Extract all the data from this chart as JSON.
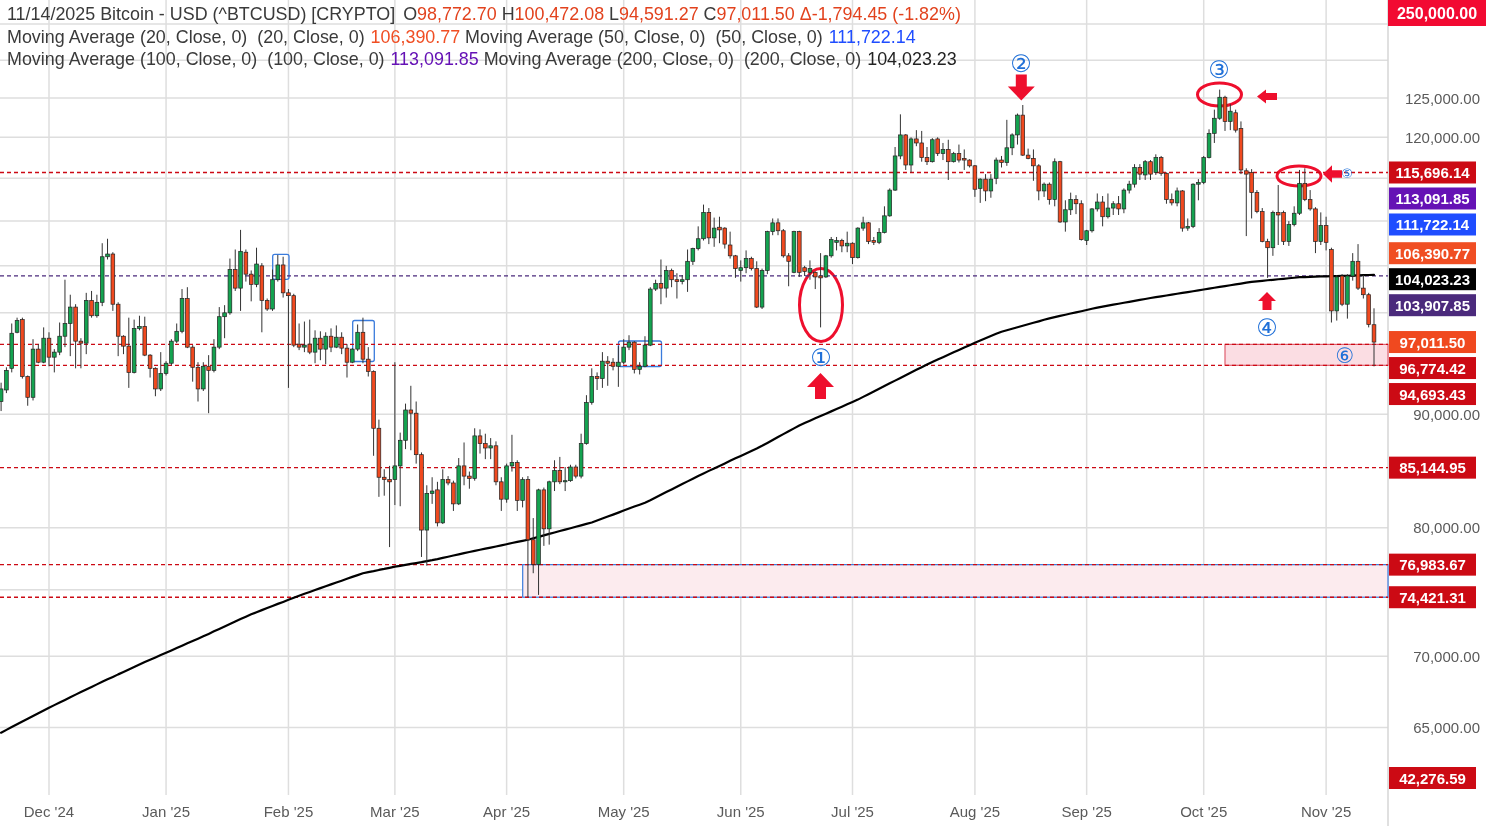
{
  "chart_data": {
    "type": "candlestick",
    "title": "11/14/2025 Bitcoin - USD (^BTCUSD) [CRYPTO]",
    "subtitle": "O98,772.70 H100,472.08 L94,591.27 C97,011.50 Δ-1,794.45 (-1.82%)",
    "categories": [
      null,
      null,
      null,
      null,
      null,
      null,
      null,
      null,
      null,
      "Dec '24",
      null,
      null,
      null,
      null,
      null,
      null,
      null,
      null,
      null,
      null,
      null,
      null,
      null,
      null,
      null,
      null,
      null,
      null,
      null,
      null,
      null,
      "Jan '25",
      null,
      null,
      null,
      null,
      null,
      null,
      null,
      null,
      null,
      null,
      null,
      null,
      null,
      null,
      null,
      null,
      null,
      null,
      null,
      null,
      null,
      null,
      "Feb '25",
      null,
      null,
      null,
      null,
      null,
      null,
      null,
      null,
      null,
      null,
      null,
      null,
      null,
      null,
      null,
      null,
      null,
      null,
      null,
      "Mar '25",
      null,
      null,
      null,
      null,
      null,
      null,
      null,
      null,
      null,
      null,
      null,
      null,
      null,
      null,
      null,
      null,
      null,
      null,
      null,
      null,
      "Apr '25",
      null,
      null,
      null,
      null,
      null,
      null,
      null,
      null,
      null,
      null,
      null,
      null,
      null,
      null,
      null,
      null,
      null,
      null,
      null,
      null,
      null,
      "May '25",
      null,
      null,
      null,
      null,
      null,
      null,
      null,
      null,
      null,
      null,
      null,
      null,
      null,
      null,
      null,
      null,
      null,
      null,
      null,
      null,
      null,
      "Jun '25",
      null,
      null,
      null,
      null,
      null,
      null,
      null,
      null,
      null,
      null,
      null,
      null,
      null,
      null,
      null,
      null,
      null,
      null,
      null,
      null,
      "Jul '25",
      null,
      null,
      null,
      null,
      null,
      null,
      null,
      null,
      null,
      null,
      null,
      null,
      null,
      null,
      null,
      null,
      null,
      null,
      null,
      null,
      null,
      null,
      "Aug '25",
      null,
      null,
      null,
      null,
      null,
      null,
      null,
      null,
      null,
      null,
      null,
      null,
      null,
      null,
      null,
      null,
      null,
      null,
      null,
      null,
      "Sep '25",
      null,
      null,
      null,
      null,
      null,
      null,
      null,
      null,
      null,
      null,
      null,
      null,
      null,
      null,
      null,
      null,
      null,
      null,
      null,
      null,
      null,
      "Oct '25",
      null,
      null,
      null,
      null,
      null,
      null,
      null,
      null,
      null,
      null,
      null,
      null,
      null,
      null,
      null,
      null,
      null,
      null,
      null,
      null,
      null,
      null,
      "Nov '25",
      null,
      null,
      null,
      null,
      null,
      null,
      null,
      null,
      null
    ],
    "ohlc": [
      [
        91200,
        93000,
        90300,
        92400
      ],
      [
        92300,
        94500,
        92000,
        94200
      ],
      [
        94400,
        98900,
        94000,
        97900
      ],
      [
        98000,
        99500,
        97900,
        99200
      ],
      [
        99300,
        99500,
        93400,
        93600
      ],
      [
        93600,
        93700,
        90800,
        91600
      ],
      [
        91600,
        97300,
        91300,
        96300
      ],
      [
        96300,
        96800,
        94900,
        95000
      ],
      [
        95000,
        98500,
        94900,
        97400
      ],
      [
        97400,
        98000,
        94600,
        95500
      ],
      [
        95500,
        96300,
        94000,
        96000
      ],
      [
        96000,
        99000,
        95700,
        97600
      ],
      [
        97600,
        103500,
        96500,
        98900
      ],
      [
        98900,
        101900,
        95600,
        100600
      ],
      [
        100600,
        100900,
        94400,
        97100
      ],
      [
        97100,
        97400,
        94400,
        96900
      ],
      [
        96900,
        102100,
        95800,
        101300
      ],
      [
        101300,
        102300,
        99500,
        99700
      ],
      [
        99700,
        101900,
        99500,
        101100
      ],
      [
        101100,
        107500,
        100700,
        106000
      ],
      [
        106000,
        108000,
        105700,
        106300
      ],
      [
        106300,
        106500,
        100200,
        100900
      ],
      [
        100900,
        101100,
        95600,
        97600
      ],
      [
        97600,
        97700,
        95800,
        96600
      ],
      [
        96600,
        99500,
        92500,
        94000
      ],
      [
        94000,
        99300,
        93900,
        98400
      ],
      [
        98400,
        99700,
        98200,
        98600
      ],
      [
        98600,
        99600,
        95600,
        95700
      ],
      [
        95700,
        95800,
        93500,
        94400
      ],
      [
        94400,
        94500,
        91700,
        92400
      ],
      [
        92400,
        96000,
        92200,
        93900
      ],
      [
        93900,
        95100,
        93700,
        94900
      ],
      [
        94900,
        97300,
        94700,
        97100
      ],
      [
        97100,
        98900,
        96900,
        98100
      ],
      [
        98100,
        102500,
        97900,
        101500
      ],
      [
        101500,
        102700,
        96400,
        96500
      ],
      [
        96500,
        96700,
        93100,
        94500
      ],
      [
        94500,
        95000,
        91200,
        92400
      ],
      [
        92400,
        95000,
        92200,
        94600
      ],
      [
        94600,
        95700,
        90100,
        94200
      ],
      [
        94200,
        97300,
        94000,
        96500
      ],
      [
        96500,
        100600,
        96300,
        99600
      ],
      [
        99600,
        100800,
        97400,
        100000
      ],
      [
        100000,
        105800,
        99800,
        104600
      ],
      [
        104600,
        106800,
        102300,
        102600
      ],
      [
        102600,
        109000,
        100200,
        106600
      ],
      [
        106500,
        106800,
        103300,
        104100
      ],
      [
        104100,
        104500,
        101200,
        103000
      ],
      [
        103000,
        107000,
        102700,
        105200
      ],
      [
        105000,
        105300,
        98000,
        101300
      ],
      [
        101300,
        101500,
        100200,
        100400
      ],
      [
        100400,
        104600,
        100200,
        103500
      ],
      [
        103500,
        106200,
        103300,
        105100
      ],
      [
        105100,
        106000,
        101600,
        102100
      ],
      [
        102100,
        102500,
        92500,
        101800
      ],
      [
        101800,
        102000,
        96500,
        96700
      ],
      [
        96800,
        98900,
        96200,
        96500
      ],
      [
        96500,
        99100,
        96000,
        96700
      ],
      [
        96800,
        99300,
        95800,
        96000
      ],
      [
        96000,
        98200,
        94900,
        97400
      ],
      [
        97400,
        98100,
        95200,
        96300
      ],
      [
        96300,
        98000,
        94800,
        97600
      ],
      [
        97600,
        98400,
        96000,
        96500
      ],
      [
        96500,
        98700,
        96400,
        97500
      ],
      [
        97500,
        98000,
        95800,
        96400
      ],
      [
        96400,
        96800,
        93500,
        95000
      ],
      [
        95000,
        96400,
        94900,
        96300
      ],
      [
        96300,
        98800,
        96100,
        98000
      ],
      [
        98000,
        99500,
        94900,
        95300
      ],
      [
        95300,
        96500,
        93600,
        94100
      ],
      [
        94100,
        94200,
        86200,
        88700
      ],
      [
        88700,
        89500,
        82600,
        84300
      ],
      [
        84300,
        85000,
        82700,
        84100
      ],
      [
        84100,
        85300,
        78400,
        83900
      ],
      [
        84100,
        95000,
        81900,
        85300
      ],
      [
        85300,
        88300,
        81800,
        87600
      ],
      [
        87600,
        91000,
        86800,
        90400
      ],
      [
        90400,
        92700,
        86700,
        90100
      ],
      [
        90100,
        91200,
        85500,
        86300
      ],
      [
        86300,
        86500,
        77600,
        79800
      ],
      [
        79800,
        83600,
        76900,
        82900
      ],
      [
        82900,
        84300,
        82000,
        83100
      ],
      [
        83200,
        83900,
        80100,
        80400
      ],
      [
        80400,
        85000,
        80300,
        84100
      ],
      [
        84100,
        84400,
        83600,
        83800
      ],
      [
        83800,
        84000,
        81400,
        82000
      ],
      [
        82000,
        86000,
        81900,
        85300
      ],
      [
        85300,
        87400,
        83600,
        84400
      ],
      [
        84400,
        84800,
        83300,
        84200
      ],
      [
        84200,
        88700,
        84000,
        88000
      ],
      [
        88000,
        88600,
        86400,
        87300
      ],
      [
        87300,
        88200,
        85900,
        86900
      ],
      [
        86900,
        87800,
        85900,
        87100
      ],
      [
        87100,
        87500,
        83600,
        83900
      ],
      [
        83900,
        84300,
        81400,
        82400
      ],
      [
        82400,
        85500,
        82100,
        85300
      ],
      [
        85300,
        88100,
        84800,
        85600
      ],
      [
        85600,
        85800,
        81400,
        82300
      ],
      [
        82300,
        84300,
        81700,
        84100
      ],
      [
        84100,
        84400,
        74420,
        79000
      ],
      [
        79000,
        80800,
        76300,
        77000
      ],
      [
        77000,
        83300,
        74600,
        83200
      ],
      [
        83200,
        83400,
        78500,
        79900
      ],
      [
        79900,
        84000,
        78600,
        83900
      ],
      [
        83900,
        85800,
        83100,
        84900
      ],
      [
        84900,
        86100,
        83700,
        83900
      ],
      [
        83900,
        85200,
        83100,
        84000
      ],
      [
        84000,
        85400,
        83900,
        85200
      ],
      [
        85200,
        85400,
        84200,
        84400
      ],
      [
        84400,
        88200,
        84200,
        87300
      ],
      [
        87300,
        91800,
        87200,
        91100
      ],
      [
        91100,
        94400,
        90900,
        93600
      ],
      [
        93600,
        94000,
        92300,
        93400
      ],
      [
        93400,
        96000,
        92500,
        95100
      ],
      [
        95100,
        95600,
        92700,
        94900
      ],
      [
        95000,
        95400,
        94200,
        94600
      ],
      [
        94600,
        96600,
        92600,
        95000
      ],
      [
        95000,
        97300,
        94800,
        96500
      ],
      [
        96500,
        97700,
        96200,
        97000
      ],
      [
        97000,
        97100,
        93900,
        94300
      ],
      [
        94300,
        95000,
        93800,
        94600
      ],
      [
        94600,
        97600,
        94500,
        96700
      ],
      [
        96700,
        102700,
        96600,
        102500
      ],
      [
        102500,
        103500,
        102300,
        103100
      ],
      [
        103100,
        105700,
        100900,
        102600
      ],
      [
        102600,
        105000,
        101600,
        104500
      ],
      [
        104500,
        104700,
        102700,
        103500
      ],
      [
        103500,
        104200,
        101500,
        103300
      ],
      [
        103300,
        104000,
        103000,
        103500
      ],
      [
        103500,
        106800,
        102200,
        105500
      ],
      [
        105500,
        107000,
        105100,
        106900
      ],
      [
        106900,
        109400,
        106700,
        108000
      ],
      [
        108000,
        111900,
        107800,
        111000
      ],
      [
        111000,
        111500,
        107400,
        108100
      ],
      [
        108100,
        110400,
        107100,
        109200
      ],
      [
        109300,
        110500,
        107500,
        109000
      ],
      [
        109200,
        109300,
        106900,
        107400
      ],
      [
        107300,
        108800,
        105800,
        106100
      ],
      [
        106100,
        106200,
        103700,
        104700
      ],
      [
        104500,
        105600,
        103300,
        104800
      ],
      [
        104800,
        106700,
        104200,
        105800
      ],
      [
        105800,
        106000,
        104500,
        104700
      ],
      [
        104700,
        105500,
        100500,
        100600
      ],
      [
        100600,
        104700,
        100400,
        104500
      ],
      [
        104500,
        108900,
        104100,
        108800
      ],
      [
        108800,
        110300,
        108400,
        109800
      ],
      [
        109800,
        110300,
        108400,
        108900
      ],
      [
        108900,
        109100,
        105900,
        106100
      ],
      [
        106100,
        106400,
        102800,
        105500
      ],
      [
        104300,
        108900,
        104200,
        108800
      ],
      [
        108800,
        108900,
        103800,
        104300
      ],
      [
        104800,
        105000,
        103900,
        104400
      ],
      [
        104300,
        105600,
        103500,
        104700
      ],
      [
        104300,
        104400,
        102500,
        103800
      ],
      [
        103900,
        106400,
        98500,
        103700
      ],
      [
        103800,
        106200,
        103700,
        106100
      ],
      [
        106100,
        108200,
        105900,
        107900
      ],
      [
        107600,
        108200,
        106700,
        107800
      ],
      [
        107800,
        108000,
        106500,
        107200
      ],
      [
        107200,
        108800,
        106500,
        107500
      ],
      [
        107500,
        107600,
        105200,
        105900
      ],
      [
        105900,
        109300,
        105800,
        109200
      ],
      [
        109200,
        110500,
        108900,
        109800
      ],
      [
        109800,
        109900,
        107400,
        107700
      ],
      [
        107800,
        108200,
        107300,
        107600
      ],
      [
        107600,
        109200,
        107400,
        108700
      ],
      [
        108700,
        111700,
        108600,
        110600
      ],
      [
        110600,
        113800,
        110500,
        113600
      ],
      [
        113600,
        118800,
        113500,
        117700
      ],
      [
        117700,
        122900,
        117300,
        120300
      ],
      [
        120300,
        120400,
        116000,
        116600
      ],
      [
        116600,
        120000,
        115700,
        119800
      ],
      [
        119800,
        120900,
        118900,
        119300
      ],
      [
        119300,
        120800,
        117000,
        117500
      ],
      [
        117500,
        118800,
        116600,
        117000
      ],
      [
        117000,
        119900,
        116900,
        119700
      ],
      [
        119800,
        120000,
        117700,
        118000
      ],
      [
        118000,
        119300,
        117200,
        118500
      ],
      [
        118500,
        119700,
        114800,
        117000
      ],
      [
        117000,
        118200,
        116900,
        118000
      ],
      [
        118000,
        119100,
        116900,
        117200
      ],
      [
        117400,
        118500,
        116000,
        117200
      ],
      [
        117200,
        117300,
        116300,
        116500
      ],
      [
        116500,
        116600,
        112800,
        113700
      ],
      [
        113800,
        115000,
        112100,
        114900
      ],
      [
        114900,
        115500,
        112300,
        113500
      ],
      [
        113500,
        115500,
        112700,
        114900
      ],
      [
        115000,
        117500,
        114300,
        117200
      ],
      [
        117200,
        117700,
        116300,
        116900
      ],
      [
        116900,
        122200,
        116500,
        118700
      ],
      [
        118700,
        120500,
        117800,
        120300
      ],
      [
        120300,
        123000,
        119100,
        122800
      ],
      [
        122800,
        124100,
        117700,
        117800
      ],
      [
        117800,
        118600,
        117300,
        117400
      ],
      [
        117400,
        118500,
        114700,
        116500
      ],
      [
        116500,
        116700,
        112400,
        113500
      ],
      [
        113500,
        114500,
        112800,
        114300
      ],
      [
        114300,
        114500,
        111900,
        112500
      ],
      [
        112500,
        117400,
        111700,
        117000
      ],
      [
        117000,
        117100,
        109800,
        109900
      ],
      [
        109900,
        112400,
        108800,
        111300
      ],
      [
        111300,
        113300,
        110700,
        112500
      ],
      [
        112500,
        113000,
        110800,
        112000
      ],
      [
        112000,
        112400,
        107800,
        107900
      ],
      [
        107800,
        109000,
        107300,
        108900
      ],
      [
        108900,
        111500,
        108700,
        111400
      ],
      [
        111400,
        113200,
        111100,
        112200
      ],
      [
        112200,
        112900,
        109400,
        110500
      ],
      [
        110500,
        113200,
        110300,
        111500
      ],
      [
        111500,
        112300,
        110700,
        112000
      ],
      [
        112000,
        112900,
        110700,
        111400
      ],
      [
        111400,
        113800,
        110900,
        113600
      ],
      [
        113600,
        114700,
        113200,
        114300
      ],
      [
        114300,
        116700,
        113900,
        116300
      ],
      [
        116300,
        116700,
        114800,
        115500
      ],
      [
        115400,
        117200,
        114800,
        117000
      ],
      [
        117000,
        117200,
        114800,
        115500
      ],
      [
        115700,
        117900,
        115400,
        117500
      ],
      [
        117500,
        117700,
        115300,
        115600
      ],
      [
        115600,
        115700,
        112000,
        112500
      ],
      [
        112500,
        113200,
        111800,
        112100
      ],
      [
        112100,
        113900,
        111700,
        113500
      ],
      [
        113500,
        113600,
        108800,
        109200
      ],
      [
        109200,
        110300,
        108900,
        109400
      ],
      [
        109400,
        114400,
        109200,
        114300
      ],
      [
        114300,
        114900,
        112400,
        114500
      ],
      [
        114500,
        117700,
        114300,
        117500
      ],
      [
        117500,
        121000,
        117400,
        120500
      ],
      [
        120500,
        123500,
        119300,
        122400
      ],
      [
        122400,
        126100,
        122200,
        125100
      ],
      [
        125100,
        125300,
        120800,
        122000
      ],
      [
        122000,
        124200,
        120900,
        123300
      ],
      [
        123100,
        123500,
        120600,
        120900
      ],
      [
        121100,
        122000,
        115500,
        116000
      ],
      [
        115900,
        116200,
        108300,
        115500
      ],
      [
        115700,
        116100,
        110300,
        113300
      ],
      [
        113300,
        113600,
        110900,
        111100
      ],
      [
        111100,
        111500,
        107600,
        107700
      ],
      [
        107700,
        108000,
        103700,
        107000
      ],
      [
        107000,
        111200,
        106100,
        111000
      ],
      [
        111000,
        114200,
        107300,
        110700
      ],
      [
        111000,
        111200,
        107300,
        107700
      ],
      [
        107700,
        110000,
        107200,
        109600
      ],
      [
        109600,
        111700,
        109400,
        110900
      ],
      [
        110900,
        116000,
        110700,
        114400
      ],
      [
        114400,
        116200,
        112300,
        112500
      ],
      [
        112500,
        113600,
        111200,
        111400
      ],
      [
        111400,
        111600,
        106400,
        107700
      ],
      [
        107700,
        111000,
        107300,
        109500
      ],
      [
        109500,
        110500,
        106700,
        107600
      ],
      [
        106800,
        107000,
        99000,
        100200
      ],
      [
        100200,
        104000,
        99200,
        103800
      ],
      [
        103900,
        104100,
        100700,
        100900
      ],
      [
        100900,
        104100,
        99400,
        103900
      ],
      [
        103900,
        106400,
        103400,
        105500
      ],
      [
        105500,
        107400,
        102400,
        102600
      ],
      [
        102600,
        104000,
        101500,
        101900
      ],
      [
        101900,
        102100,
        98500,
        98800
      ],
      [
        98772.7,
        100472.08,
        94591.27,
        97011.5
      ]
    ],
    "series": [
      {
        "type": "line",
        "color": "#000000",
        "values": [
          64650,
          64840,
          65030,
          65220,
          65410,
          65590,
          65780,
          65970,
          66160,
          66350,
          66530,
          66710,
          66890,
          67070,
          67260,
          67440,
          67620,
          67800,
          67980,
          68160,
          68340,
          68510,
          68690,
          68860,
          69040,
          69210,
          69390,
          69570,
          69740,
          69910,
          70080,
          70250,
          70420,
          70590,
          70770,
          70940,
          71110,
          71280,
          71460,
          71640,
          71830,
          72010,
          72200,
          72380,
          72560,
          72750,
          72930,
          73110,
          73270,
          73430,
          73590,
          73750,
          73910,
          74060,
          74220,
          74380,
          74540,
          74690,
          74830,
          74980,
          75130,
          75270,
          75420,
          75570,
          75710,
          75860,
          76010,
          76150,
          76300,
          76390,
          76470,
          76560,
          76640,
          76730,
          76820,
          76890,
          76970,
          77040,
          77110,
          77180,
          77260,
          77340,
          77430,
          77530,
          77620,
          77720,
          77810,
          77910,
          78000,
          78090,
          78180,
          78270,
          78360,
          78450,
          78540,
          78630,
          78730,
          78820,
          78910,
          79000,
          79120,
          79240,
          79360,
          79480,
          79600,
          79720,
          79840,
          79950,
          80070,
          80190,
          80310,
          80430,
          80590,
          80760,
          80930,
          81090,
          81260,
          81430,
          81600,
          81770,
          81930,
          82100,
          82310,
          82540,
          82780,
          83010,
          83240,
          83480,
          83710,
          83940,
          84170,
          84410,
          84630,
          84860,
          85080,
          85300,
          85520,
          85750,
          85970,
          86190,
          86410,
          86640,
          86860,
          87100,
          87360,
          87630,
          87900,
          88160,
          88430,
          88690,
          88960,
          89180,
          89400,
          89620,
          89840,
          90050,
          90270,
          90490,
          90710,
          90930,
          91150,
          91380,
          91640,
          91900,
          92160,
          92420,
          92680,
          92940,
          93200,
          93460,
          93730,
          93990,
          94250,
          94510,
          94770,
          95020,
          95260,
          95500,
          95740,
          95980,
          96220,
          96460,
          96700,
          96930,
          97160,
          97390,
          97620,
          97850,
          98060,
          98210,
          98360,
          98520,
          98670,
          98820,
          98970,
          99120,
          99280,
          99430,
          99560,
          99680,
          99800,
          99930,
          100050,
          100170,
          100290,
          100420,
          100540,
          100650,
          100750,
          100850,
          100950,
          101050,
          101150,
          101250,
          101350,
          101450,
          101550,
          101640,
          101730,
          101820,
          101910,
          102000,
          102090,
          102180,
          102270,
          102360,
          102450,
          102540,
          102640,
          102730,
          102820,
          102910,
          103000,
          103090,
          103190,
          103270,
          103330,
          103380,
          103440,
          103490,
          103550,
          103600,
          103660,
          103710,
          103770,
          103790,
          103810,
          103830,
          103850,
          103860,
          103880,
          103900,
          103920,
          103930,
          103950,
          103970,
          103990,
          104010,
          104023.23
        ]
      }
    ],
    "ylim": [
      60600,
      138400
    ],
    "yticks": [
      {
        "value": 65000,
        "label": "65,000.00"
      },
      {
        "value": 70000,
        "label": "70,000.00"
      },
      {
        "value": 75000,
        "label": null
      },
      {
        "value": 80000,
        "label": "80,000.00"
      },
      {
        "value": 90000,
        "label": "90,000.00"
      },
      {
        "value": 100000,
        "label": null
      },
      {
        "value": 105000,
        "label": null
      },
      {
        "value": 110000,
        "label": null
      },
      {
        "value": 115000,
        "label": null
      },
      {
        "value": 120000,
        "label": "120,000.00"
      },
      {
        "value": 125000,
        "label": "125,000.00"
      },
      {
        "value": 130000,
        "label": null
      },
      {
        "value": 135000,
        "label": null
      }
    ],
    "log": "y",
    "grid": true,
    "ref_lines": [
      {
        "axis": "y",
        "value": 115696.14,
        "label": "115,696.14",
        "color": "#cc0a14",
        "line_style": "dashed"
      },
      {
        "axis": "y",
        "value": 103907.85,
        "label": "103,907.85",
        "color": "#4b2a7c",
        "line_style": "dashed"
      },
      {
        "axis": "y",
        "value": 96774.42,
        "label": "96,774.42",
        "color": "#cc0a14",
        "line_style": "dashed"
      },
      {
        "axis": "y",
        "value": 94693.43,
        "label": "94,693.43",
        "color": "#cc0a14",
        "line_style": "dashed"
      },
      {
        "axis": "y",
        "value": 85144.95,
        "label": "85,144.95",
        "color": "#cc0a14",
        "line_style": "dashed"
      },
      {
        "axis": "y",
        "value": 76983.67,
        "label": "76,983.67",
        "color": "#cc0a14",
        "line_style": "dashed"
      },
      {
        "axis": "y",
        "value": 74421.31,
        "label": "74,421.31",
        "color": "#cc0a14",
        "line_style": "dashed"
      }
    ],
    "bands": [
      {
        "axis": "y",
        "from": 74421.31,
        "to": 76983.67,
        "color": "#fcebee"
      },
      {
        "axis": "y",
        "from": 94693.43,
        "to": 96774.42,
        "color": "#fbdde3"
      }
    ],
    "annotations": [
      "Moving Average (20, Close, 0)  (20, Close, 0)",
      "106,390.77",
      "Moving Average (50, Close, 0)  (50, Close, 0)",
      "111,722.14",
      "Moving Average (100, Close, 0)  (100, Close, 0)",
      "113,091.85",
      "Moving Average (200, Close, 0)  (200, Close, 0)",
      "104,023.23",
      "97,011.50",
      "250,000.00",
      "42,276.59",
      "①",
      "②",
      "③",
      "④",
      "⑤",
      "⑥"
    ]
  }
}
